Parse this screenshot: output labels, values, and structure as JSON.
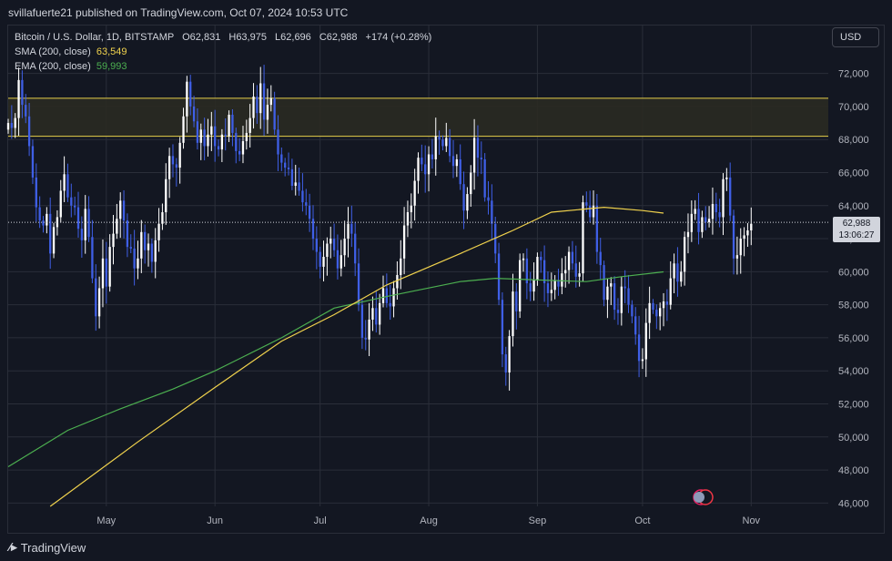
{
  "header": {
    "published": "svillafuerte21 published on TradingView.com, Oct 07, 2024 10:53 UTC"
  },
  "legend": {
    "symbol": "Bitcoin / U.S. Dollar, 1D, BITSTAMP",
    "open": "O62,831",
    "high": "H63,975",
    "low": "L62,696",
    "close": "C62,988",
    "change": "+174 (+0.28%)",
    "sma_label": "SMA (200, close)",
    "sma_value": "63,549",
    "ema_label": "EMA (200, close)",
    "ema_value": "59,993"
  },
  "currency_button": "USD",
  "last_price": {
    "price": "62,988",
    "countdown": "13:06:27"
  },
  "footer": {
    "brand": "TradingView"
  },
  "colors": {
    "background": "#131722",
    "up_candle": "#ffffff",
    "down_candle": "#3f5fe6",
    "sma": "#f0d24d",
    "ema": "#4caf50",
    "zone_fill": "#2a2a22",
    "zone_border": "#e6cf4a",
    "grid": "#2a2e39",
    "text": "#d1d4dc"
  },
  "chart_data": {
    "type": "candlestick",
    "y_ticks": [
      "72,000",
      "70,000",
      "68,000",
      "66,000",
      "64,000",
      "62,000",
      "60,000",
      "58,000",
      "56,000",
      "54,000",
      "52,000",
      "50,000",
      "48,000",
      "46,000"
    ],
    "y_range": [
      45800,
      74900
    ],
    "x_ticks": [
      {
        "label": "May",
        "date": "2024-05-01"
      },
      {
        "label": "Jun",
        "date": "2024-06-01"
      },
      {
        "label": "Jul",
        "date": "2024-07-01"
      },
      {
        "label": "Aug",
        "date": "2024-08-01"
      },
      {
        "label": "Sep",
        "date": "2024-09-01"
      },
      {
        "label": "Oct",
        "date": "2024-10-01"
      },
      {
        "label": "Nov",
        "date": "2024-11-01"
      }
    ],
    "x_range": [
      "2024-04-03",
      "2024-11-23"
    ],
    "resistance_zone": [
      68200,
      70500
    ],
    "last_close": 62988,
    "closes": [
      69000,
      68700,
      69300,
      71600,
      70100,
      69400,
      67600,
      65700,
      63900,
      63100,
      62800,
      63500,
      61100,
      62700,
      63300,
      64900,
      65900,
      64500,
      64000,
      63900,
      62600,
      61900,
      63800,
      62100,
      59600,
      57300,
      59000,
      60800,
      59100,
      61500,
      62300,
      63200,
      64300,
      63100,
      61500,
      61400,
      60200,
      60800,
      62400,
      61300,
      61700,
      60600,
      61900,
      62900,
      63600,
      65600,
      67000,
      66500,
      66300,
      67800,
      69400,
      71500,
      70000,
      69100,
      67800,
      68600,
      67600,
      68300,
      68800,
      67600,
      67400,
      68300,
      68200,
      69500,
      68400,
      67300,
      67100,
      67900,
      68400,
      69300,
      70600,
      69600,
      71400,
      69200,
      70100,
      70500,
      68600,
      67100,
      66600,
      66300,
      66200,
      65200,
      65400,
      64900,
      64200,
      64000,
      63200,
      62000,
      61200,
      60300,
      60900,
      61700,
      62000,
      61300,
      60200,
      61000,
      62000,
      62900,
      62300,
      60500,
      58000,
      56000,
      55900,
      57100,
      57800,
      56800,
      58100,
      59000,
      58100,
      57900,
      59000,
      59800,
      60800,
      62800,
      63600,
      64000,
      65500,
      66900,
      66500,
      65900,
      67100,
      66800,
      68200,
      68000,
      67600,
      68100,
      67000,
      66400,
      66800,
      65300,
      63700,
      64700,
      66000,
      68100,
      66900,
      66800,
      64500,
      64300,
      62900,
      61100,
      58300,
      55000,
      53900,
      56100,
      58800,
      57600,
      60700,
      60800,
      59300,
      58800,
      59500,
      60900,
      60700,
      59300,
      58700,
      58900,
      59500,
      59100,
      59900,
      60100,
      61200,
      60500,
      59700,
      59900,
      64200,
      64000,
      63300,
      64000,
      61200,
      60400,
      58300,
      59100,
      59300,
      57700,
      57500,
      59100,
      59000,
      58000,
      57300,
      56200,
      54600,
      54700,
      56900,
      58100,
      57700,
      57300,
      57800,
      58200,
      58000,
      59600,
      60500,
      59400,
      60000,
      62100,
      62400,
      63500,
      63800,
      62400,
      63300,
      63000,
      63200,
      64100,
      63600,
      63300,
      65600,
      65700,
      63400,
      60800,
      61000,
      62000,
      62200,
      62500,
      62900
    ],
    "sma_200": [
      {
        "x": "2024-04-15",
        "y": 45800
      },
      {
        "x": "2024-05-10",
        "y": 49700
      },
      {
        "x": "2024-06-01",
        "y": 53000
      },
      {
        "x": "2024-06-20",
        "y": 55800
      },
      {
        "x": "2024-07-05",
        "y": 57400
      },
      {
        "x": "2024-07-20",
        "y": 59200
      },
      {
        "x": "2024-08-10",
        "y": 61100
      },
      {
        "x": "2024-08-25",
        "y": 62500
      },
      {
        "x": "2024-09-05",
        "y": 63600
      },
      {
        "x": "2024-09-20",
        "y": 63900
      },
      {
        "x": "2024-10-01",
        "y": 63700
      },
      {
        "x": "2024-10-07",
        "y": 63549
      }
    ],
    "ema_200": [
      {
        "x": "2024-04-03",
        "y": 48200
      },
      {
        "x": "2024-04-20",
        "y": 50400
      },
      {
        "x": "2024-05-05",
        "y": 51700
      },
      {
        "x": "2024-05-20",
        "y": 52900
      },
      {
        "x": "2024-06-01",
        "y": 54000
      },
      {
        "x": "2024-06-20",
        "y": 56000
      },
      {
        "x": "2024-07-05",
        "y": 57800
      },
      {
        "x": "2024-07-20",
        "y": 58500
      },
      {
        "x": "2024-08-10",
        "y": 59400
      },
      {
        "x": "2024-08-20",
        "y": 59600
      },
      {
        "x": "2024-09-01",
        "y": 59500
      },
      {
        "x": "2024-09-15",
        "y": 59400
      },
      {
        "x": "2024-09-25",
        "y": 59700
      },
      {
        "x": "2024-10-07",
        "y": 59993
      }
    ]
  }
}
